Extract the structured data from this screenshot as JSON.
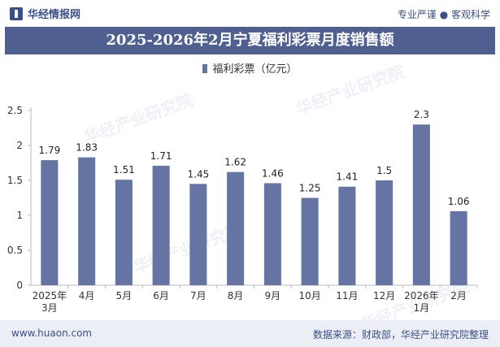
{
  "header": {
    "brand": "华经情报网",
    "tagline": "专业严谨 ● 客观科学"
  },
  "title": "2025-2026年2月宁夏福利彩票月度销售额",
  "legend": {
    "series_name": "福利彩票（亿元）"
  },
  "footer": {
    "url": "www.huaon.com",
    "source": "数据来源：财政部，华经产业研究院整理"
  },
  "watermarks": [
    "华经产业研究院",
    "华经产业研究院",
    "华经产业研究院",
    "华经产业研究院"
  ],
  "colors": {
    "bar": "#6674a3",
    "title_bg": "#4f5f8f",
    "brand": "#3a4f86"
  },
  "chart_data": {
    "type": "bar",
    "categories": [
      [
        "2025年",
        "3月"
      ],
      [
        "4月"
      ],
      [
        "5月"
      ],
      [
        "6月"
      ],
      [
        "7月"
      ],
      [
        "8月"
      ],
      [
        "9月"
      ],
      [
        "10月"
      ],
      [
        "11月"
      ],
      [
        "12月"
      ],
      [
        "2026年",
        "1月"
      ],
      [
        "2月"
      ]
    ],
    "series": [
      {
        "name": "福利彩票（亿元）",
        "values": [
          1.79,
          1.83,
          1.51,
          1.71,
          1.45,
          1.62,
          1.46,
          1.25,
          1.41,
          1.5,
          2.3,
          1.06
        ]
      }
    ],
    "ylim": [
      0,
      2.5
    ],
    "yticks": [
      "0",
      "0.5",
      "1",
      "1.5",
      "2",
      "2.5"
    ],
    "grid": false,
    "legend_position": "top-center"
  }
}
